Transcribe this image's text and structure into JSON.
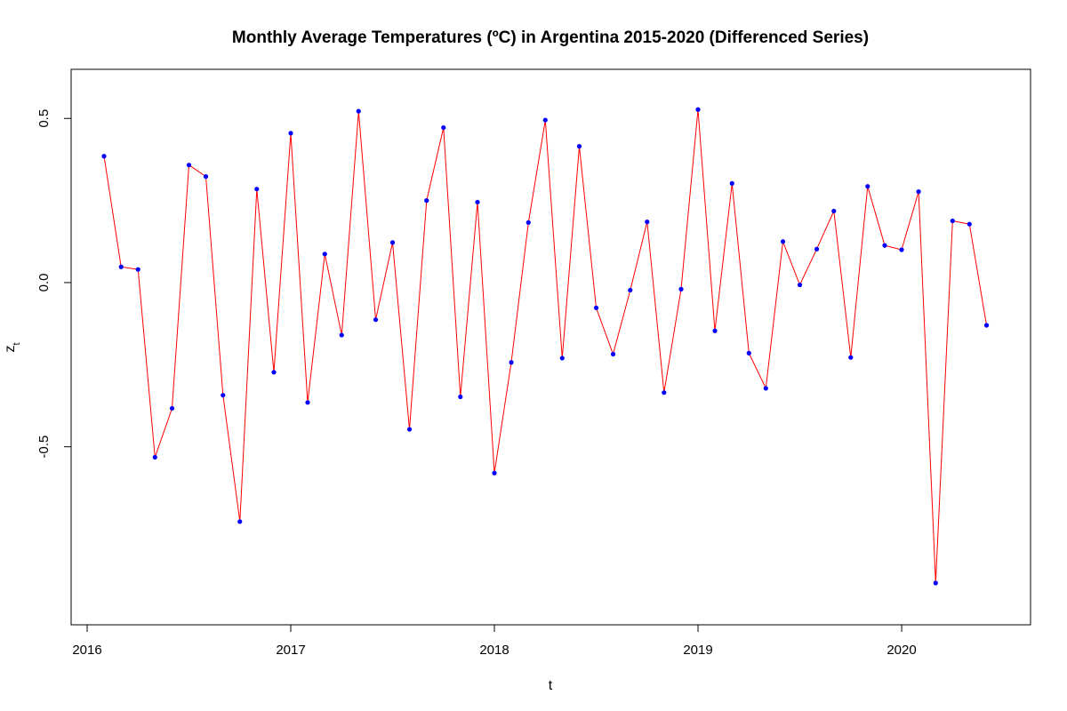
{
  "chart_data": {
    "type": "line",
    "title": "Monthly Average Temperatures (ºC) in Argentina 2015-2020 (Differenced Series)",
    "xlabel": "t",
    "ylabel": "z",
    "ylabel_subscript": "t",
    "x_ticks": [
      "2016",
      "2017",
      "2018",
      "2019",
      "2020"
    ],
    "y_ticks": [
      "-0.5",
      "0.0",
      "0.5"
    ],
    "y_tick_values": [
      -0.5,
      0.0,
      0.5
    ],
    "xlim": [
      2016.0,
      2020.55
    ],
    "ylim": [
      -0.98,
      0.59
    ],
    "grid": false,
    "legend": "none",
    "line_color": "#ff0000",
    "point_color": "#0000ff",
    "series": [
      {
        "x": [
          2016.083,
          2016.167,
          2016.25,
          2016.333,
          2016.417,
          2016.5,
          2016.583,
          2016.667,
          2016.75,
          2016.833,
          2016.917,
          2017.0,
          2017.083,
          2017.167,
          2017.25,
          2017.333,
          2017.417,
          2017.5,
          2017.583,
          2017.667,
          2017.75,
          2017.833,
          2017.917,
          2018.0,
          2018.083,
          2018.167,
          2018.25,
          2018.333,
          2018.417,
          2018.5,
          2018.583,
          2018.667,
          2018.75,
          2018.833,
          2018.917,
          2019.0,
          2019.083,
          2019.167,
          2019.25,
          2019.333,
          2019.417,
          2019.5,
          2019.583,
          2019.667,
          2019.75,
          2019.833,
          2019.917,
          2020.0,
          2020.083,
          2020.167,
          2020.25,
          2020.333,
          2020.417
        ],
        "y": [
          0.385,
          0.048,
          0.04,
          -0.532,
          -0.383,
          0.358,
          0.323,
          -0.343,
          -0.728,
          0.285,
          -0.273,
          0.455,
          -0.365,
          0.087,
          -0.16,
          0.522,
          -0.113,
          0.122,
          -0.447,
          0.25,
          0.472,
          -0.348,
          0.245,
          -0.58,
          -0.243,
          0.183,
          0.495,
          -0.23,
          0.415,
          -0.077,
          -0.218,
          -0.023,
          0.185,
          -0.335,
          -0.02,
          0.527,
          -0.147,
          0.302,
          -0.215,
          -0.322,
          0.125,
          -0.007,
          0.102,
          0.218,
          -0.228,
          0.293,
          0.113,
          0.1,
          0.277,
          -0.915,
          0.188,
          0.178,
          -0.13
        ]
      }
    ]
  }
}
